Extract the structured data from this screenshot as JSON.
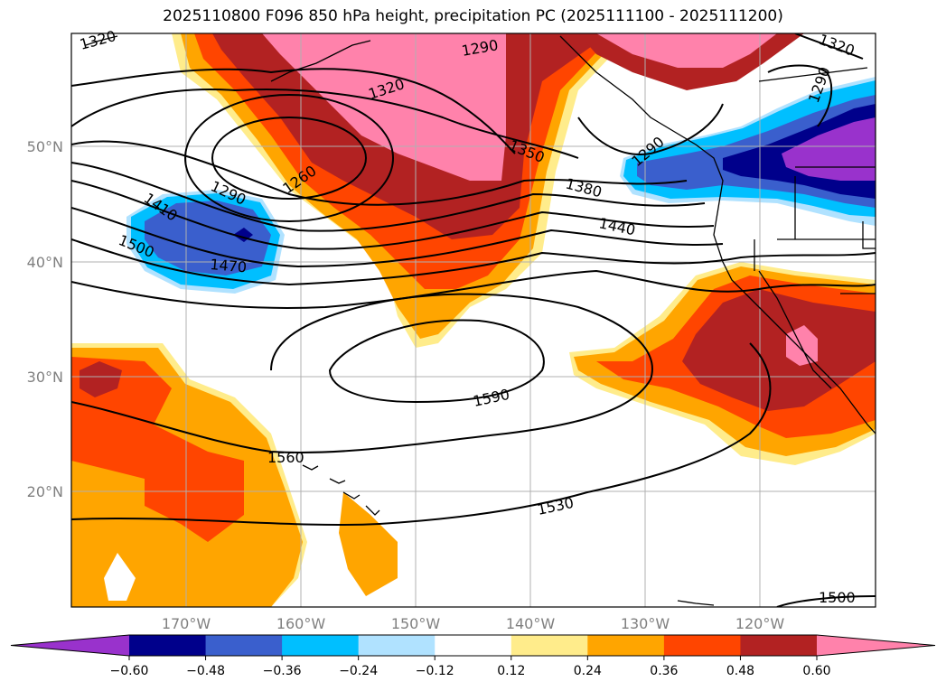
{
  "title": "2025110800 F096 850 hPa height, precipitation PC (2025111100 - 2025111200)",
  "lat_labels": [
    "50°N",
    "40°N",
    "30°N",
    "20°N"
  ],
  "lon_labels": [
    "170°W",
    "160°W",
    "150°W",
    "140°W",
    "130°W",
    "120°W"
  ],
  "contour_labels": [
    "1320",
    "1290",
    "1320",
    "1320",
    "1290",
    "1290",
    "1350",
    "1260",
    "1290",
    "1410",
    "1380",
    "1440",
    "1500",
    "1470",
    "1590",
    "1560",
    "1530",
    "1500"
  ],
  "colorbar": {
    "colors": [
      "#9932cc",
      "#00008b",
      "#3a5fcd",
      "#00bfff",
      "#b0e2ff",
      "#ffffff",
      "#ffec8b",
      "#ffa500",
      "#ff4500",
      "#b22222",
      "#ff82ab"
    ],
    "ticks": [
      "−0.60",
      "−0.48",
      "−0.36",
      "−0.24",
      "−0.12",
      "0.12",
      "0.24",
      "0.36",
      "0.48",
      "0.60"
    ]
  },
  "colors": {
    "pos1": "#ffec8b",
    "pos2": "#ffa500",
    "pos3": "#ff4500",
    "pos4": "#b22222",
    "pos5": "#ff82ab",
    "neg1": "#b0e2ff",
    "neg2": "#00bfff",
    "neg3": "#3a5fcd",
    "neg4": "#00008b",
    "neg5": "#9932cc"
  }
}
